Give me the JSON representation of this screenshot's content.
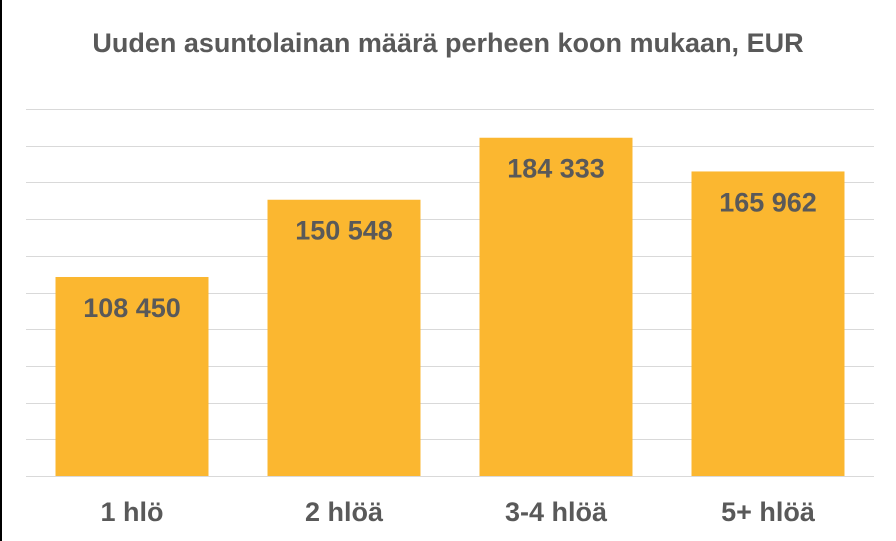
{
  "chart_data": {
    "type": "bar",
    "title": "Uuden asuntolainan määrä perheen koon mukaan, EUR",
    "categories": [
      "1 hlö",
      "2 hlöä",
      "3-4 hlöä",
      "5+ hlöä"
    ],
    "values": [
      108450,
      150548,
      184333,
      165962
    ],
    "value_labels": [
      "108 450",
      "150 548",
      "184 333",
      "165 962"
    ],
    "ylim": [
      0,
      200000
    ],
    "grid": true,
    "legend": "none",
    "colors": {
      "bar": "#FBB730",
      "text": "#595959",
      "grid": "#D9D9D9"
    }
  }
}
